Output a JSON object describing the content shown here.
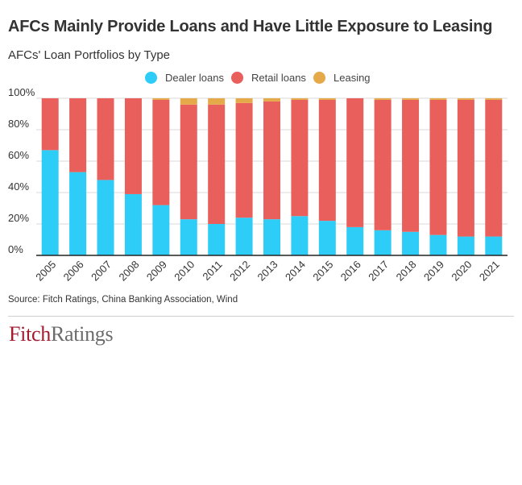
{
  "header": {
    "title": "AFCs Mainly Provide Loans and Have Little Exposure to Leasing",
    "subtitle": "AFCs' Loan Portfolios by Type"
  },
  "legend": {
    "items": [
      {
        "label": "Dealer loans",
        "color": "#2ecdf8"
      },
      {
        "label": "Retail loans",
        "color": "#e85f5c"
      },
      {
        "label": "Leasing",
        "color": "#e6a94a"
      }
    ]
  },
  "chart_data": {
    "type": "bar",
    "stacked": true,
    "categories": [
      "2005",
      "2006",
      "2007",
      "2008",
      "2009",
      "2010",
      "2011",
      "2012",
      "2013",
      "2014",
      "2015",
      "2016",
      "2017",
      "2018",
      "2019",
      "2020",
      "2021"
    ],
    "series": [
      {
        "name": "Dealer loans",
        "color": "#2ecdf8",
        "values": [
          67,
          53,
          48,
          39,
          32,
          23,
          20,
          24,
          23,
          25,
          22,
          18,
          16,
          15,
          13,
          12,
          12
        ]
      },
      {
        "name": "Retail loans",
        "color": "#e85f5c",
        "values": [
          33,
          47,
          52,
          61,
          67,
          73,
          76,
          73,
          75,
          74,
          77,
          82,
          83,
          84,
          86,
          87,
          87
        ]
      },
      {
        "name": "Leasing",
        "color": "#e6a94a",
        "values": [
          0,
          0,
          0,
          0,
          1,
          4,
          4,
          3,
          2,
          1,
          1,
          0,
          1,
          1,
          1,
          1,
          1
        ]
      }
    ],
    "y_ticks": [
      "0%",
      "20%",
      "40%",
      "60%",
      "80%",
      "100%"
    ],
    "ylim": [
      0,
      100
    ],
    "xlabel": "",
    "ylabel": "",
    "grid": true,
    "legend_position": "top-center"
  },
  "footer": {
    "source": "Source: Fitch Ratings, China Banking Association, Wind",
    "logo_part1": "Fitch",
    "logo_part2": "Ratings"
  }
}
